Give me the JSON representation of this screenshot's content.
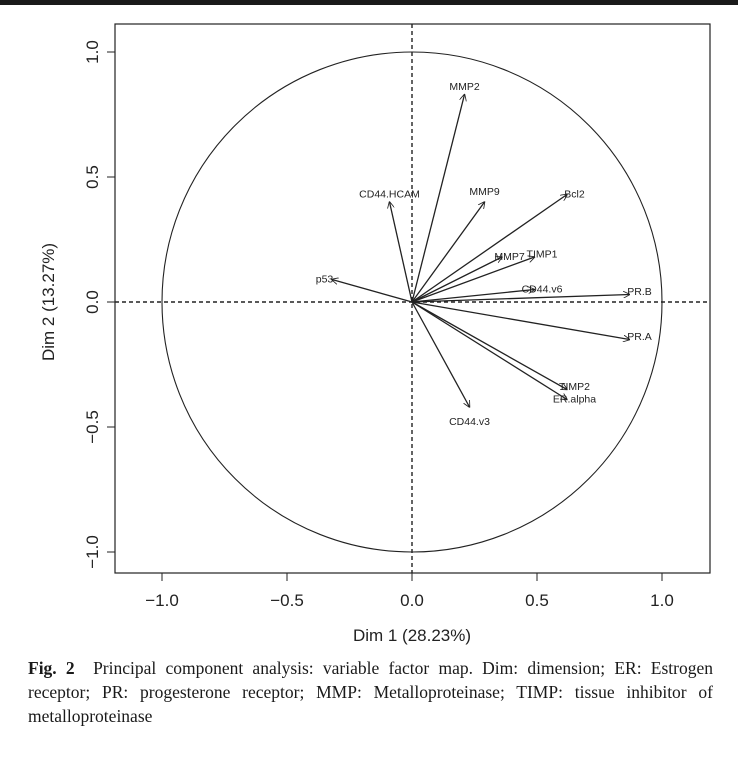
{
  "chart_data": {
    "type": "scatter",
    "subtype": "pca-variable-factor-map",
    "title": "",
    "xlabel": "Dim 1 (28.23%)",
    "ylabel": "Dim 2 (13.27%)",
    "xlim": [
      -1.2,
      1.2
    ],
    "ylim": [
      -1.08,
      1.08
    ],
    "xticks": [
      "−1.0",
      "−0.5",
      "0.0",
      "0.5",
      "1.0"
    ],
    "xtick_values": [
      -1.0,
      -0.5,
      0.0,
      0.5,
      1.0
    ],
    "yticks": [
      "−1.0",
      "−0.5",
      "0.0",
      "0.5",
      "1.0"
    ],
    "ytick_values": [
      -1.0,
      -0.5,
      0.0,
      0.5,
      1.0
    ],
    "unit_circle": true,
    "zero_lines": "dashed",
    "grid": false,
    "vectors": [
      {
        "name": "MMP2",
        "x": 0.21,
        "y": 0.83,
        "label_x": 0.21,
        "label_y": 0.86
      },
      {
        "name": "CD44.HCAM",
        "x": -0.09,
        "y": 0.4,
        "label_x": -0.09,
        "label_y": 0.43
      },
      {
        "name": "MMP9",
        "x": 0.29,
        "y": 0.4,
        "label_x": 0.29,
        "label_y": 0.44
      },
      {
        "name": "Bcl2",
        "x": 0.62,
        "y": 0.43,
        "label_x": 0.65,
        "label_y": 0.43
      },
      {
        "name": "MMP7",
        "x": 0.36,
        "y": 0.18,
        "label_x": 0.39,
        "label_y": 0.18
      },
      {
        "name": "TIMP1",
        "x": 0.49,
        "y": 0.18,
        "label_x": 0.52,
        "label_y": 0.19
      },
      {
        "name": "p53",
        "x": -0.32,
        "y": 0.09,
        "label_x": -0.35,
        "label_y": 0.09
      },
      {
        "name": "CD44.v6",
        "x": 0.49,
        "y": 0.05,
        "label_x": 0.52,
        "label_y": 0.05
      },
      {
        "name": "PR.B",
        "x": 0.87,
        "y": 0.03,
        "label_x": 0.91,
        "label_y": 0.04
      },
      {
        "name": "PR.A",
        "x": 0.87,
        "y": -0.15,
        "label_x": 0.91,
        "label_y": -0.14
      },
      {
        "name": "TIMP2",
        "x": 0.62,
        "y": -0.35,
        "label_x": 0.65,
        "label_y": -0.34
      },
      {
        "name": "ER.alpha",
        "x": 0.62,
        "y": -0.39,
        "label_x": 0.65,
        "label_y": -0.39
      },
      {
        "name": "CD44.v3",
        "x": 0.23,
        "y": -0.42,
        "label_x": 0.23,
        "label_y": -0.48
      }
    ]
  },
  "caption": {
    "label": "Fig. 2",
    "text": "Principal component analysis: variable factor map. Dim: dimension; ER: Estrogen receptor; PR: progesterone receptor; MMP: Metalloproteinase; TIMP: tissue inhibitor of metalloproteinase"
  }
}
